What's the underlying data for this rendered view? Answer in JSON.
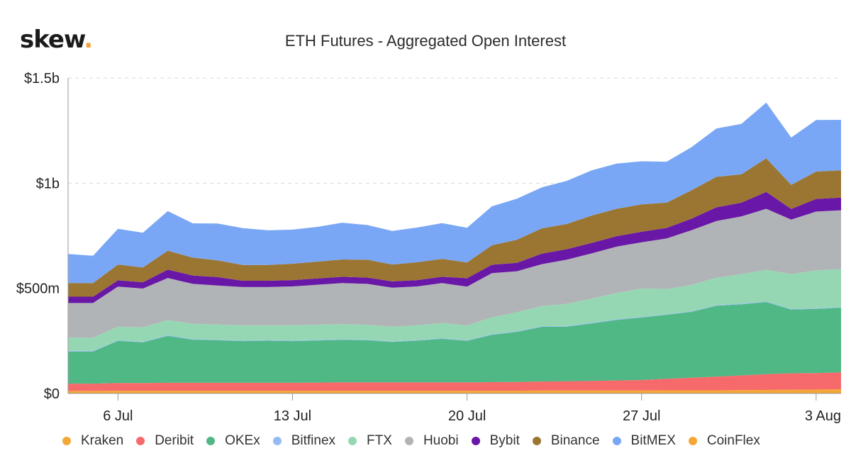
{
  "brand": {
    "name": "skew",
    "dot": "."
  },
  "chart_data": {
    "type": "area",
    "stacked": true,
    "title": "ETH Futures - Aggregated Open Interest",
    "xlabel": "",
    "ylabel": "",
    "ylim": [
      0,
      1500000000
    ],
    "yticks": [
      {
        "value": 0,
        "label": "$0"
      },
      {
        "value": 500000000,
        "label": "$500m"
      },
      {
        "value": 1000000000,
        "label": "$1b"
      },
      {
        "value": 1500000000,
        "label": "$1.5b"
      }
    ],
    "xticks": [
      {
        "date": "2020-07-06",
        "label": "6 Jul"
      },
      {
        "date": "2020-07-13",
        "label": "13 Jul"
      },
      {
        "date": "2020-07-20",
        "label": "20 Jul"
      },
      {
        "date": "2020-07-27",
        "label": "27 Jul"
      },
      {
        "date": "2020-08-03",
        "label": "3 Aug"
      }
    ],
    "grid": true,
    "legend_position": "bottom",
    "x": [
      "2020-07-04",
      "2020-07-05",
      "2020-07-06",
      "2020-07-07",
      "2020-07-08",
      "2020-07-09",
      "2020-07-10",
      "2020-07-11",
      "2020-07-12",
      "2020-07-13",
      "2020-07-14",
      "2020-07-15",
      "2020-07-16",
      "2020-07-17",
      "2020-07-18",
      "2020-07-19",
      "2020-07-20",
      "2020-07-21",
      "2020-07-22",
      "2020-07-23",
      "2020-07-24",
      "2020-07-25",
      "2020-07-26",
      "2020-07-27",
      "2020-07-28",
      "2020-07-29",
      "2020-07-30",
      "2020-07-31",
      "2020-08-01",
      "2020-08-02",
      "2020-08-03",
      "2020-08-04"
    ],
    "series": [
      {
        "name": "Kraken",
        "color": "#f4a736",
        "values": [
          12,
          12,
          13,
          13,
          13,
          13,
          13,
          13,
          13,
          13,
          13,
          13,
          13,
          13,
          13,
          13,
          13,
          13,
          13,
          14,
          14,
          14,
          14,
          14,
          15,
          15,
          15,
          16,
          17,
          18,
          19,
          20
        ]
      },
      {
        "name": "Deribit",
        "color": "#f76a6c",
        "values": [
          35,
          35,
          37,
          37,
          38,
          38,
          38,
          38,
          38,
          38,
          39,
          40,
          40,
          40,
          40,
          40,
          40,
          41,
          42,
          43,
          44,
          46,
          48,
          50,
          55,
          60,
          65,
          70,
          75,
          78,
          78,
          80
        ]
      },
      {
        "name": "OKEx",
        "color": "#4fb884",
        "values": [
          153,
          153,
          200,
          193,
          223,
          205,
          202,
          198,
          200,
          198,
          200,
          202,
          200,
          192,
          198,
          207,
          197,
          225,
          238,
          260,
          260,
          273,
          288,
          297,
          304,
          313,
          337,
          338,
          343,
          303,
          305,
          308
        ]
      },
      {
        "name": "Bitfinex",
        "color": "#95bcf2",
        "values": [
          3,
          3,
          3,
          3,
          3,
          3,
          3,
          3,
          3,
          3,
          3,
          3,
          3,
          3,
          3,
          3,
          3,
          3,
          3,
          3,
          3,
          3,
          3,
          3,
          3,
          3,
          3,
          3,
          3,
          3,
          3,
          3
        ]
      },
      {
        "name": "FTX",
        "color": "#96d7b3",
        "values": [
          62,
          62,
          65,
          68,
          72,
          72,
          72,
          72,
          70,
          72,
          72,
          72,
          70,
          70,
          70,
          72,
          70,
          80,
          90,
          95,
          105,
          115,
          125,
          135,
          120,
          125,
          130,
          140,
          150,
          165,
          180,
          180
        ]
      },
      {
        "name": "Huobi",
        "color": "#b1b4b7",
        "values": [
          165,
          165,
          190,
          185,
          200,
          190,
          185,
          182,
          182,
          185,
          190,
          195,
          195,
          185,
          185,
          190,
          185,
          210,
          195,
          200,
          210,
          215,
          220,
          220,
          240,
          260,
          270,
          275,
          290,
          260,
          280,
          280
        ]
      },
      {
        "name": "Bybit",
        "color": "#6917a6",
        "values": [
          30,
          30,
          30,
          30,
          40,
          40,
          40,
          30,
          30,
          30,
          30,
          30,
          30,
          30,
          30,
          30,
          40,
          40,
          40,
          50,
          50,
          50,
          50,
          50,
          50,
          55,
          65,
          65,
          80,
          50,
          60,
          60
        ]
      },
      {
        "name": "Binance",
        "color": "#9b7633",
        "values": [
          65,
          65,
          75,
          70,
          90,
          85,
          80,
          75,
          75,
          78,
          80,
          82,
          85,
          80,
          85,
          85,
          75,
          93,
          110,
          120,
          120,
          130,
          130,
          130,
          120,
          135,
          145,
          135,
          160,
          115,
          130,
          130
        ]
      },
      {
        "name": "BitMEX",
        "color": "#7aa7f5",
        "values": [
          138,
          130,
          170,
          165,
          188,
          163,
          175,
          175,
          165,
          162,
          165,
          175,
          165,
          160,
          165,
          170,
          165,
          185,
          195,
          195,
          205,
          215,
          215,
          205,
          195,
          205,
          230,
          240,
          265,
          225,
          245,
          240
        ]
      },
      {
        "name": "CoinFlex",
        "color": "#f4a736",
        "values": [
          0,
          0,
          0,
          0,
          0,
          0,
          0,
          0,
          0,
          0,
          0,
          0,
          0,
          0,
          0,
          0,
          0,
          0,
          0,
          0,
          0,
          0,
          0,
          0,
          0,
          0,
          0,
          0,
          0,
          0,
          0,
          0
        ]
      }
    ],
    "unit": "$m"
  }
}
